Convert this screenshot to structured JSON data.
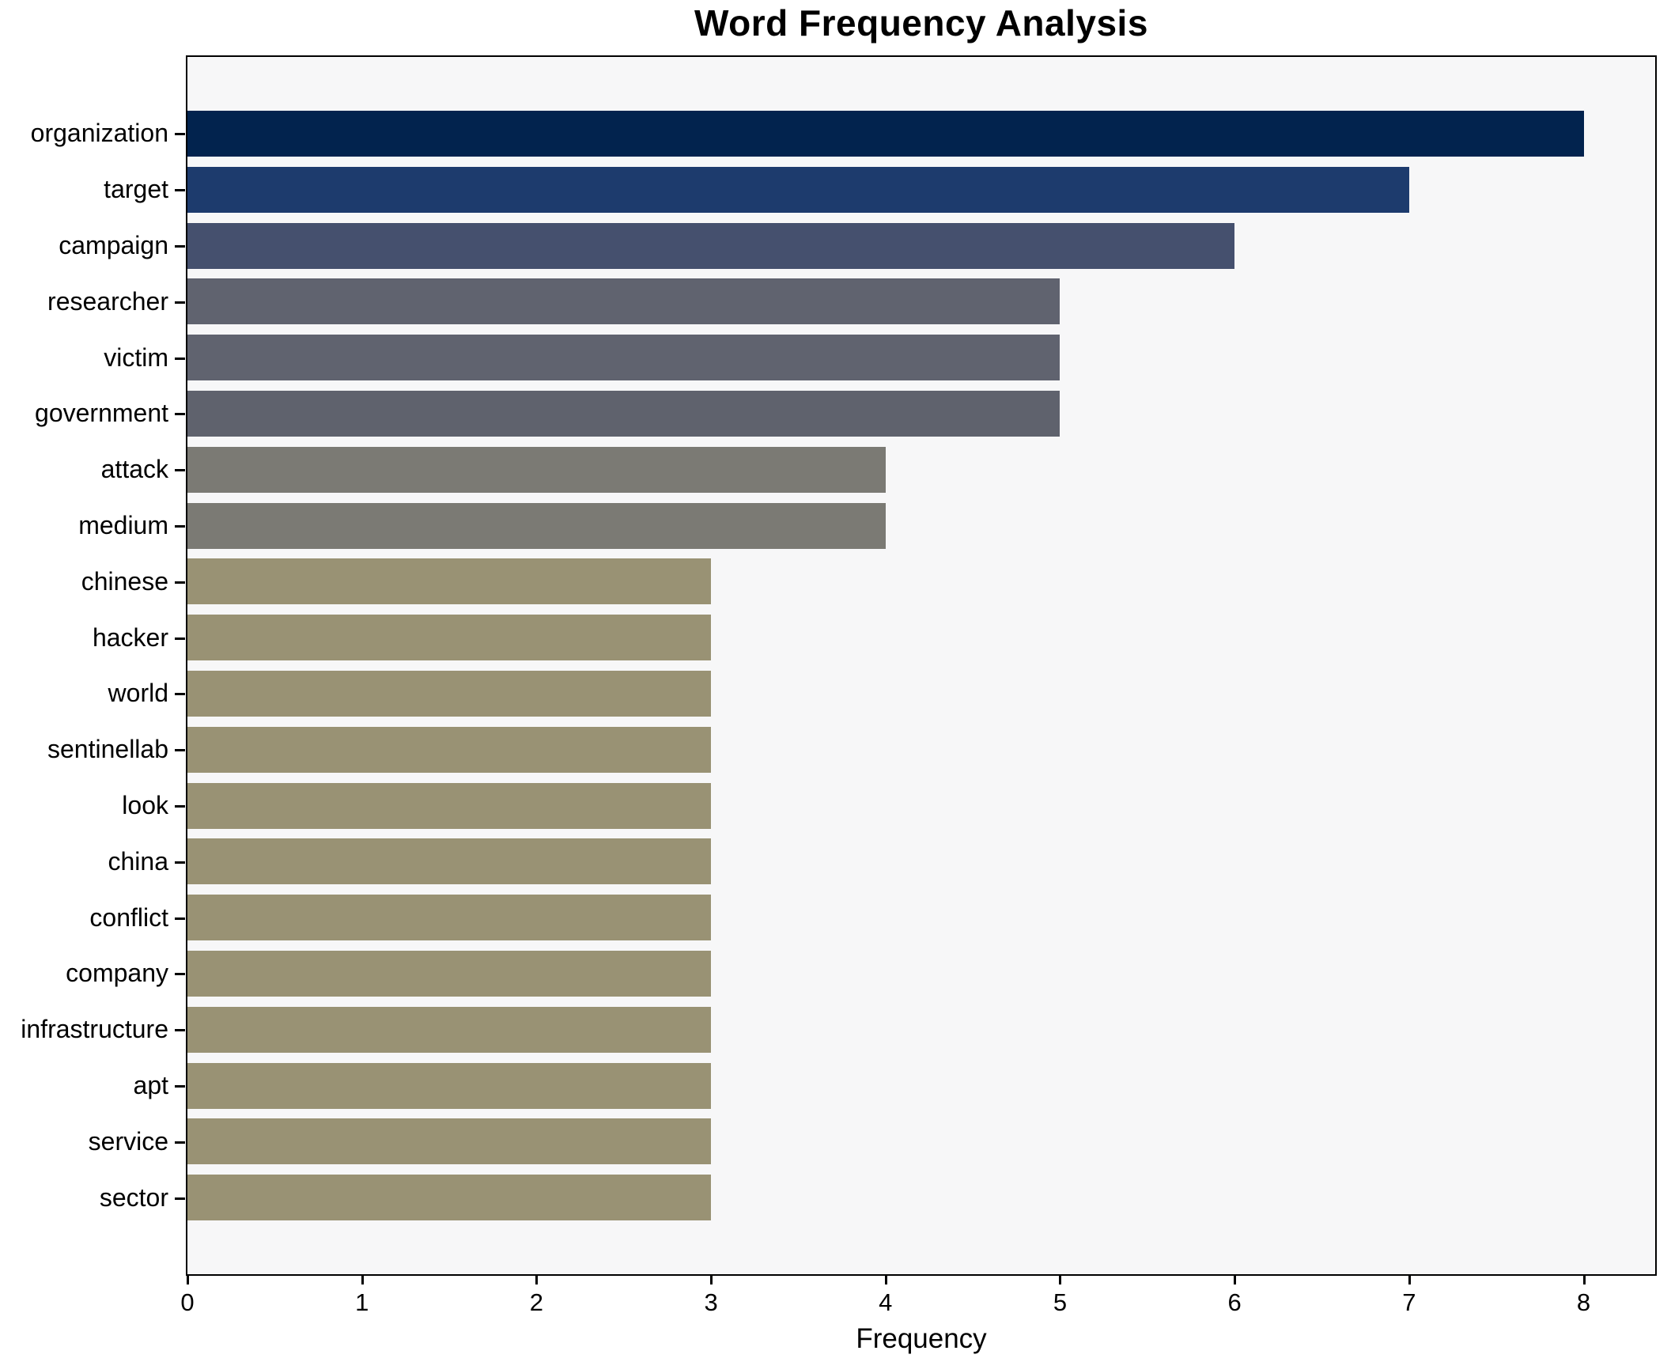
{
  "page": {
    "background_color": "#ffffff",
    "plot_background_color": "#f7f7f8",
    "spine_color": "#000000"
  },
  "chart_data": {
    "type": "bar",
    "orientation": "horizontal",
    "title": "Word Frequency Analysis",
    "xlabel": "Frequency",
    "ylabel": "",
    "grid": false,
    "legend": "none",
    "xlim": [
      0,
      8.41
    ],
    "x_ticks": [
      0,
      1,
      2,
      3,
      4,
      5,
      6,
      7,
      8
    ],
    "categories": [
      "organization",
      "target",
      "campaign",
      "researcher",
      "victim",
      "government",
      "attack",
      "medium",
      "chinese",
      "hacker",
      "world",
      "sentinellab",
      "look",
      "china",
      "conflict",
      "company",
      "infrastructure",
      "apt",
      "service",
      "sector"
    ],
    "values": [
      8,
      7,
      6,
      5,
      5,
      5,
      4,
      4,
      3,
      3,
      3,
      3,
      3,
      3,
      3,
      3,
      3,
      3,
      3,
      3
    ],
    "bar_colors": [
      "#02234e",
      "#1d3b6d",
      "#45506e",
      "#60636f",
      "#60636f",
      "#5f626d",
      "#7b7a74",
      "#7b7a74",
      "#999274",
      "#999274",
      "#999274",
      "#999274",
      "#999274",
      "#999274",
      "#999274",
      "#999274",
      "#999274",
      "#999274",
      "#999274",
      "#999274"
    ]
  }
}
